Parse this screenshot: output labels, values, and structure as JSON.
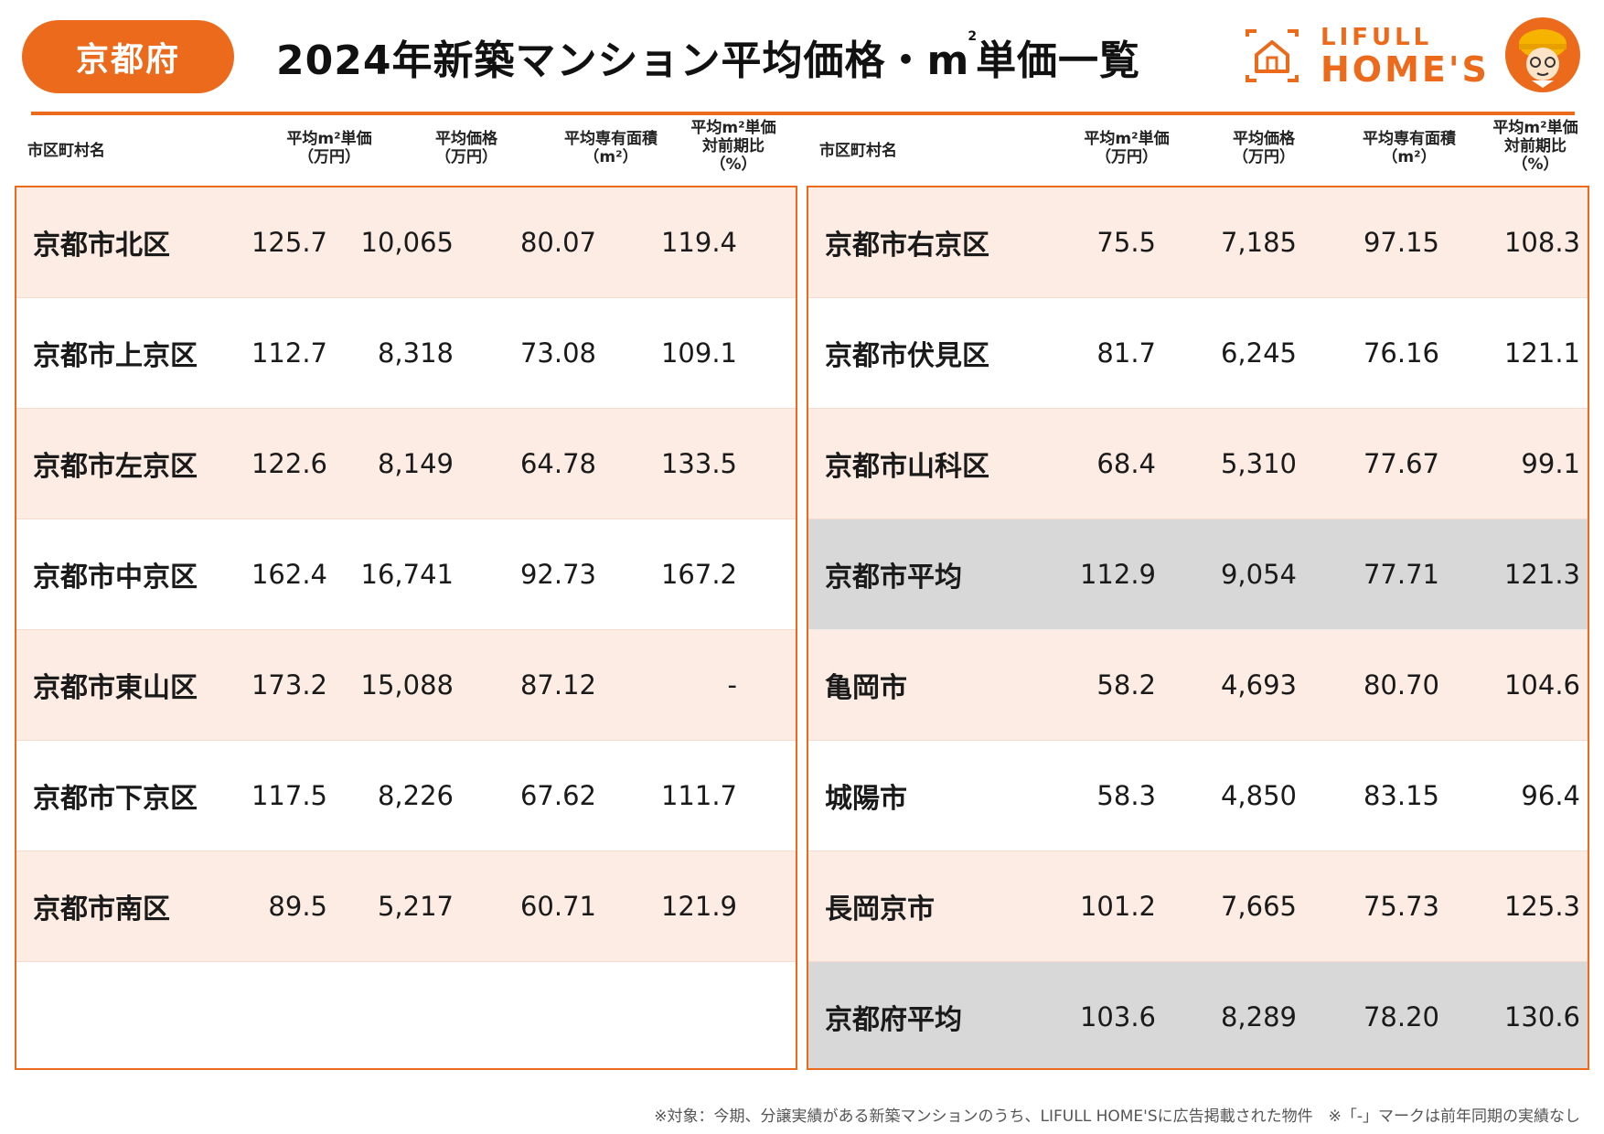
{
  "badge": "京都府",
  "title_pre": "2024年新築マンション平均価格・m",
  "title_sup": "2",
  "title_post": "単価一覧",
  "brand": {
    "top": "LIFULL",
    "main": "HOME'S",
    "color": "#ec6a1c"
  },
  "headers": {
    "name": "市区町村名",
    "unit_price_l1": "平均m²単価",
    "unit_price_l2": "（万円）",
    "price_l1": "平均価格",
    "price_l2": "（万円）",
    "area_l1": "平均専有面積",
    "area_l2": "（m²）",
    "yoy_l1": "平均m²単価",
    "yoy_l2": "対前期比",
    "yoy_l3": "（%）"
  },
  "left_rows": [
    {
      "name": "京都市北区",
      "unit": "125.7",
      "price": "10,065",
      "area": "80.07",
      "yoy": "119.4"
    },
    {
      "name": "京都市上京区",
      "unit": "112.7",
      "price": "8,318",
      "area": "73.08",
      "yoy": "109.1"
    },
    {
      "name": "京都市左京区",
      "unit": "122.6",
      "price": "8,149",
      "area": "64.78",
      "yoy": "133.5"
    },
    {
      "name": "京都市中京区",
      "unit": "162.4",
      "price": "16,741",
      "area": "92.73",
      "yoy": "167.2"
    },
    {
      "name": "京都市東山区",
      "unit": "173.2",
      "price": "15,088",
      "area": "87.12",
      "yoy": "-"
    },
    {
      "name": "京都市下京区",
      "unit": "117.5",
      "price": "8,226",
      "area": "67.62",
      "yoy": "111.7"
    },
    {
      "name": "京都市南区",
      "unit": "89.5",
      "price": "5,217",
      "area": "60.71",
      "yoy": "121.9"
    }
  ],
  "right_rows": [
    {
      "name": "京都市右京区",
      "unit": "75.5",
      "price": "7,185",
      "area": "97.15",
      "yoy": "108.3"
    },
    {
      "name": "京都市伏見区",
      "unit": "81.7",
      "price": "6,245",
      "area": "76.16",
      "yoy": "121.1"
    },
    {
      "name": "京都市山科区",
      "unit": "68.4",
      "price": "5,310",
      "area": "77.67",
      "yoy": "99.1"
    },
    {
      "name": "京都市平均",
      "unit": "112.9",
      "price": "9,054",
      "area": "77.71",
      "yoy": "121.3"
    },
    {
      "name": "亀岡市",
      "unit": "58.2",
      "price": "4,693",
      "area": "80.70",
      "yoy": "104.6"
    },
    {
      "name": "城陽市",
      "unit": "58.3",
      "price": "4,850",
      "area": "83.15",
      "yoy": "96.4"
    },
    {
      "name": "長岡京市",
      "unit": "101.2",
      "price": "7,665",
      "area": "75.73",
      "yoy": "125.3"
    },
    {
      "name": "京都府平均",
      "unit": "103.6",
      "price": "8,289",
      "area": "78.20",
      "yoy": "130.6"
    }
  ],
  "footnote": "※対象：今期、分譲実績がある新築マンションのうち、LIFULL HOME'Sに広告掲載された物件　※「-」マークは前年同期の実績なし"
}
